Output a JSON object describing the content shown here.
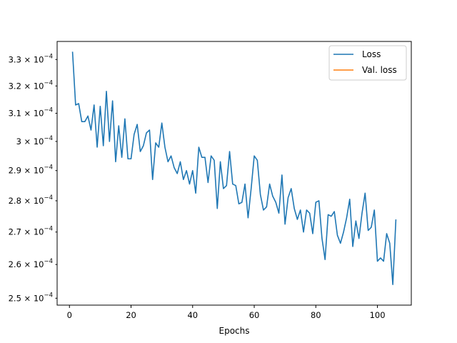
{
  "chart_data": {
    "type": "line",
    "xlabel": "Epochs",
    "ylabel": "",
    "xlim": [
      -4,
      111
    ],
    "ylim": [
      0.000248,
      0.000337
    ],
    "yscale": "log",
    "xticks": [
      0,
      20,
      40,
      60,
      80,
      100
    ],
    "yticks": [
      {
        "value": 0.00025,
        "mantissa": "2.5",
        "base": "10",
        "exp": "−4"
      },
      {
        "value": 0.00026,
        "mantissa": "2.6",
        "base": "10",
        "exp": "−4"
      },
      {
        "value": 0.00027,
        "mantissa": "2.7",
        "base": "10",
        "exp": "−4"
      },
      {
        "value": 0.00028,
        "mantissa": "2.8",
        "base": "10",
        "exp": "−4"
      },
      {
        "value": 0.00029,
        "mantissa": "2.9",
        "base": "10",
        "exp": "−4"
      },
      {
        "value": 0.0003,
        "mantissa": "3",
        "base": "10",
        "exp": "−4"
      },
      {
        "value": 0.00031,
        "mantissa": "3.1",
        "base": "10",
        "exp": "−4"
      },
      {
        "value": 0.00032,
        "mantissa": "3.2",
        "base": "10",
        "exp": "−4"
      },
      {
        "value": 0.00033,
        "mantissa": "3.3",
        "base": "10",
        "exp": "−4"
      }
    ],
    "legend_position": "top-right",
    "grid": false,
    "series": [
      {
        "name": "Loss",
        "color": "#1f77b4",
        "x": [
          1,
          2,
          3,
          4,
          5,
          6,
          7,
          8,
          9,
          10,
          11,
          12,
          13,
          14,
          15,
          16,
          17,
          18,
          19,
          20,
          21,
          22,
          23,
          24,
          25,
          26,
          27,
          28,
          29,
          30,
          31,
          32,
          33,
          34,
          35,
          36,
          37,
          38,
          39,
          40,
          41,
          42,
          43,
          44,
          45,
          46,
          47,
          48,
          49,
          50,
          51,
          52,
          53,
          54,
          55,
          56,
          57,
          58,
          59,
          60,
          61,
          62,
          63,
          64,
          65,
          66,
          67,
          68,
          69,
          70,
          71,
          72,
          73,
          74,
          75,
          76,
          77,
          78,
          79,
          80,
          81,
          82,
          83,
          84,
          85,
          86,
          87,
          88,
          89,
          90,
          91,
          92,
          93,
          94,
          95,
          96,
          97,
          98,
          99,
          100,
          101,
          102,
          103,
          104,
          105,
          106
        ],
        "values": [
          0.000333,
          0.000313,
          0.0003135,
          0.000307,
          0.000307,
          0.000309,
          0.000304,
          0.000313,
          0.000298,
          0.0003125,
          0.0002985,
          0.000318,
          0.0003,
          0.0003145,
          0.000293,
          0.0003055,
          0.0002945,
          0.000308,
          0.000294,
          0.000294,
          0.0003025,
          0.000306,
          0.0002965,
          0.0002985,
          0.000303,
          0.000304,
          0.000287,
          0.0002995,
          0.000298,
          0.0003065,
          0.000298,
          0.000293,
          0.000295,
          0.000291,
          0.000289,
          0.000293,
          0.000287,
          0.00029,
          0.0002855,
          0.00029,
          0.0002825,
          0.000298,
          0.0002945,
          0.0002945,
          0.000286,
          0.000295,
          0.0002935,
          0.0002775,
          0.000293,
          0.000284,
          0.000285,
          0.0002965,
          0.0002855,
          0.000285,
          0.000279,
          0.0002795,
          0.0002855,
          0.0002745,
          0.000284,
          0.000295,
          0.0002935,
          0.000282,
          0.000277,
          0.000278,
          0.0002855,
          0.0002815,
          0.0002795,
          0.000276,
          0.0002885,
          0.0002725,
          0.000281,
          0.000284,
          0.0002775,
          0.000274,
          0.000277,
          0.00027,
          0.000277,
          0.000276,
          0.0002695,
          0.0002795,
          0.00028,
          0.000268,
          0.0002615,
          0.0002755,
          0.000275,
          0.0002765,
          0.000269,
          0.0002665,
          0.00027,
          0.0002745,
          0.0002805,
          0.0002655,
          0.0002735,
          0.000268,
          0.000276,
          0.0002825,
          0.0002705,
          0.0002715,
          0.000277,
          0.000261,
          0.000262,
          0.000261,
          0.0002695,
          0.0002665,
          0.000254,
          0.000274
        ]
      },
      {
        "name": "Val. loss",
        "color": "#ff7f0e",
        "x": [],
        "values": []
      }
    ]
  }
}
